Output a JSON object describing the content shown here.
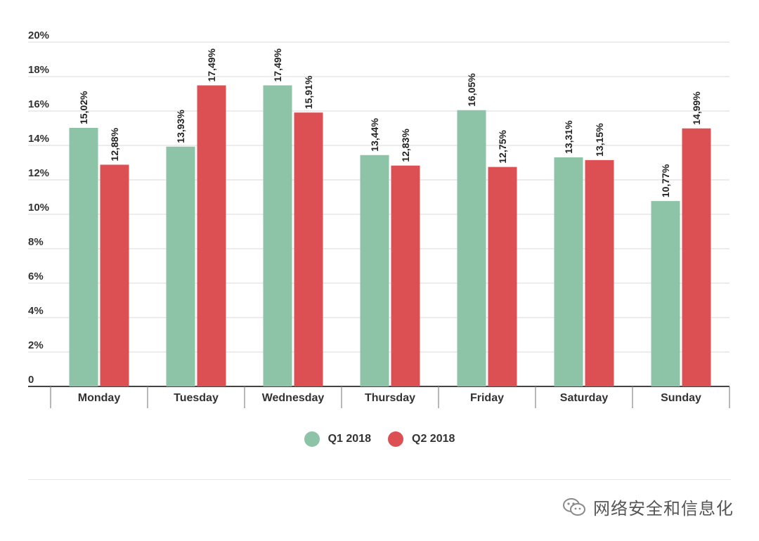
{
  "chart_data": {
    "type": "bar",
    "categories": [
      "Monday",
      "Tuesday",
      "Wednesday",
      "Thursday",
      "Friday",
      "Saturday",
      "Sunday"
    ],
    "series": [
      {
        "name": "Q1 2018",
        "color": "#8dc3a7",
        "values": [
          15.02,
          13.93,
          17.49,
          13.44,
          16.05,
          13.31,
          10.77
        ],
        "labels": [
          "15,02%",
          "13,93%",
          "17,49%",
          "13,44%",
          "16,05%",
          "13,31%",
          "10,77%"
        ]
      },
      {
        "name": "Q2 2018",
        "color": "#dc5054",
        "values": [
          12.88,
          17.49,
          15.91,
          12.83,
          12.75,
          13.15,
          14.99
        ],
        "labels": [
          "12,88%",
          "17,49%",
          "15,91%",
          "12,83%",
          "12,75%",
          "13,15%",
          "14,99%"
        ]
      }
    ],
    "yticks": [
      0,
      2,
      4,
      6,
      8,
      10,
      12,
      14,
      16,
      18,
      20
    ],
    "ytick_labels": [
      "0",
      "2%",
      "4%",
      "6%",
      "8%",
      "10%",
      "12%",
      "14%",
      "16%",
      "18%",
      "20%"
    ],
    "ylim": [
      0,
      20
    ],
    "grid": true,
    "legend_position": "bottom-center"
  },
  "watermark": {
    "text": "网络安全和信息化"
  }
}
